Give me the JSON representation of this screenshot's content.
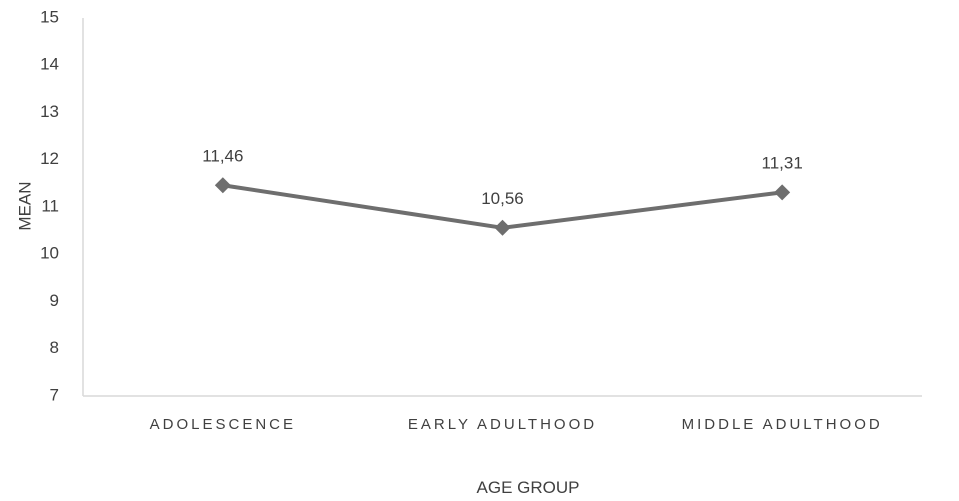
{
  "chart_data": {
    "type": "line",
    "categories": [
      "ADOLESCENCE",
      "EARLY ADULTHOOD",
      "MIDDLE ADULTHOOD"
    ],
    "series": [
      {
        "values": [
          11.46,
          10.56,
          11.31
        ],
        "labels": [
          "11,46",
          "10,56",
          "11,31"
        ]
      }
    ],
    "xlabel": "AGE GROUP",
    "ylabel": "MEAN",
    "ylim": [
      7,
      15
    ],
    "yticks": [
      "7",
      "8",
      "9",
      "10",
      "11",
      "12",
      "13",
      "14",
      "15"
    ],
    "grid": false,
    "marker": "diamond",
    "colors": {
      "line": "#6e6e6e",
      "axis": "#d9d9d9",
      "text": "#404040"
    }
  }
}
